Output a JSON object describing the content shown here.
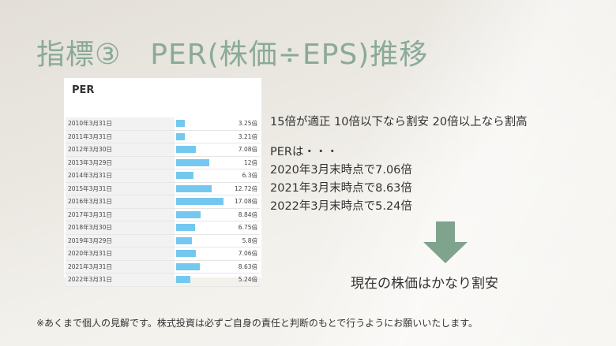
{
  "slide": {
    "title": "指標③　PER(株価÷EPS)推移",
    "criteria": "15倍が適正 10倍以下なら割安 20倍以上なら割高",
    "per_intro": "PERは・・・",
    "per_lines": [
      "2020年3月末時点で7.06倍",
      "2021年3月末時点で8.63倍",
      "2022年3月末時点で5.24倍"
    ],
    "conclusion": "現在の株価はかなり割安",
    "note": "※あくまで個人の見解です。株式投資は必ずご自身の責任と判断のもとで行うようにお願いいたします。",
    "arrow_color": "#7fa38c",
    "title_color": "#8aaa98",
    "bar_color": "#74c8ef"
  },
  "chart_data": {
    "type": "bar",
    "title": "PER",
    "categories": [
      "2010年3月31日",
      "2011年3月31日",
      "2012年3月30日",
      "2013年3月29日",
      "2014年3月31日",
      "2015年3月31日",
      "2016年3月31日",
      "2017年3月31日",
      "2018年3月30日",
      "2019年3月29日",
      "2020年3月31日",
      "2021年3月31日",
      "2022年3月31日"
    ],
    "values": [
      3.25,
      3.21,
      7.08,
      12,
      6.3,
      12.72,
      17.08,
      8.84,
      6.75,
      5.8,
      7.06,
      8.63,
      5.24
    ],
    "value_labels": [
      "3.25倍",
      "3.21倍",
      "7.08倍",
      "12倍",
      "6.3倍",
      "12.72倍",
      "17.08倍",
      "8.84倍",
      "6.75倍",
      "5.8倍",
      "7.06倍",
      "8.63倍",
      "5.24倍"
    ]
  }
}
